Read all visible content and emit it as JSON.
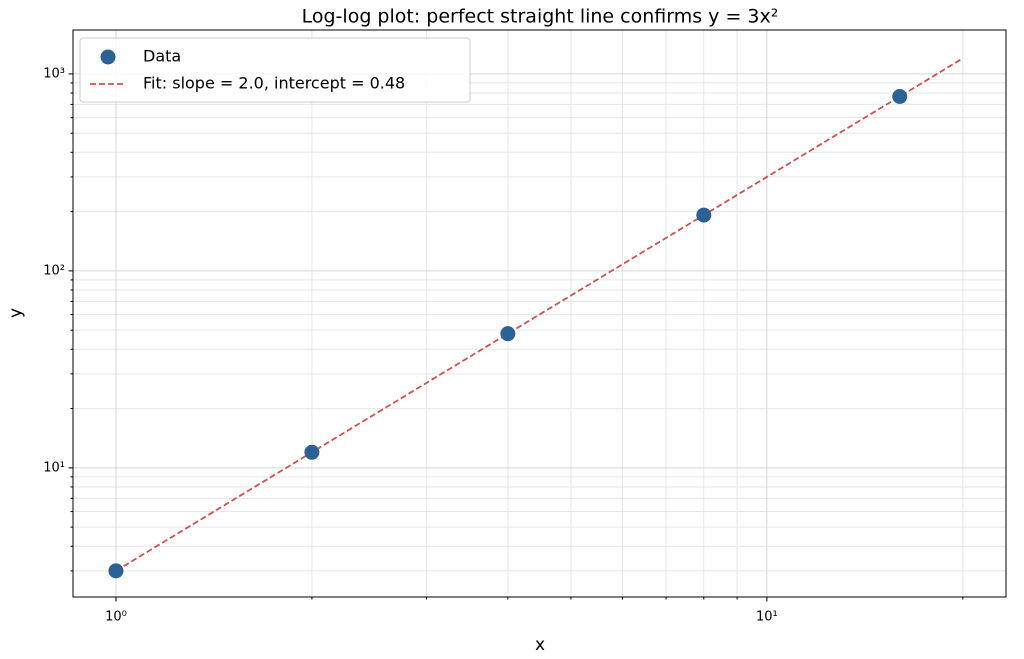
{
  "chart_data": {
    "type": "scatter",
    "title": "Log-log plot: perfect straight line confirms y = 3x²",
    "xlabel": "x",
    "ylabel": "y",
    "xscale": "log",
    "yscale": "log",
    "xlim": [
      0.859,
      23.3
    ],
    "ylim": [
      2.21,
      1671
    ],
    "xticks": [
      {
        "value": 1,
        "label": "10⁰"
      },
      {
        "value": 10,
        "label": "10¹"
      }
    ],
    "yticks": [
      {
        "value": 10,
        "label": "10¹"
      },
      {
        "value": 100,
        "label": "10²"
      },
      {
        "value": 1000,
        "label": "10³"
      }
    ],
    "xminorticks": [
      2,
      3,
      4,
      5,
      6,
      7,
      8,
      9,
      20
    ],
    "yminorticks": [
      3,
      4,
      5,
      6,
      7,
      8,
      9,
      20,
      30,
      40,
      50,
      60,
      70,
      80,
      90,
      200,
      300,
      400,
      500,
      600,
      700,
      800,
      900
    ],
    "grid": true,
    "legend": "upper left",
    "series": [
      {
        "name": "Data",
        "type": "scatter",
        "color": "#2b6195",
        "x": [
          1,
          2,
          4,
          8,
          16
        ],
        "values": [
          3,
          12,
          48,
          192,
          768
        ]
      },
      {
        "name": "Fit: slope = 2.0, intercept = 0.48",
        "type": "line",
        "dashed": true,
        "color": "#d0524c",
        "x": [
          1,
          20
        ],
        "values": [
          3,
          1200
        ]
      }
    ]
  }
}
